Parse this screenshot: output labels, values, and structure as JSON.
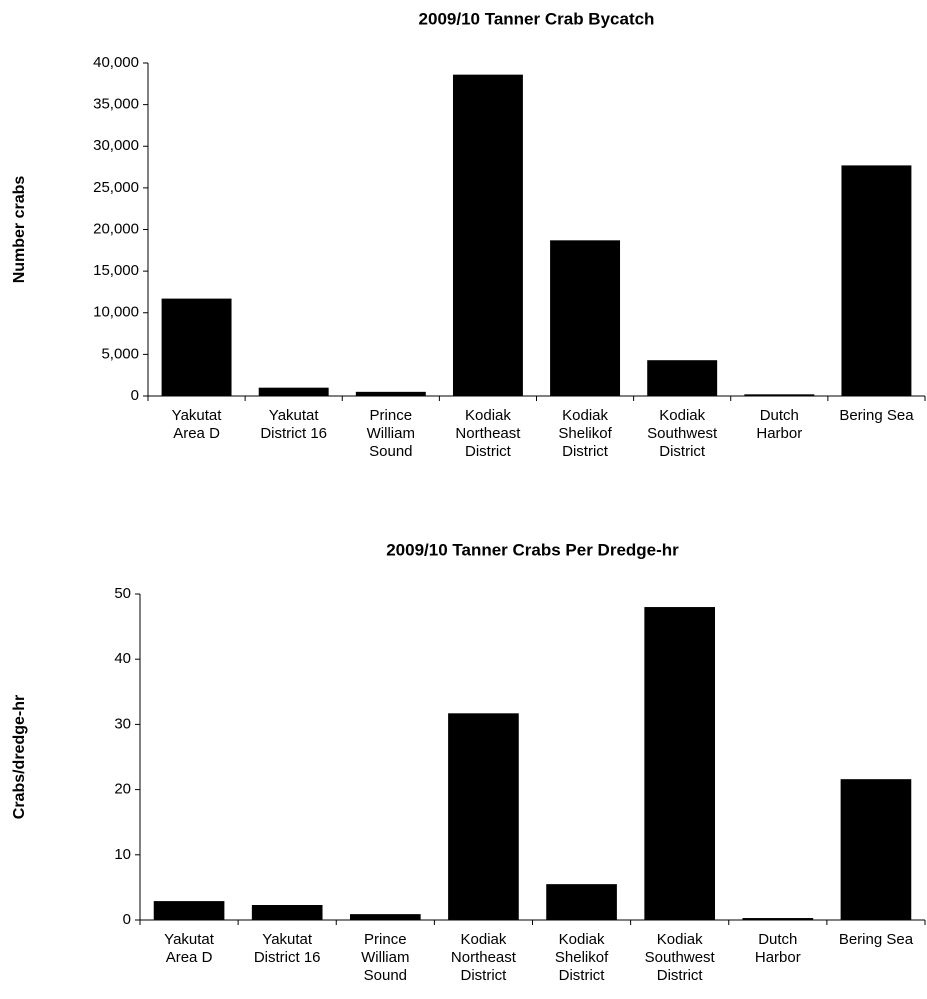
{
  "chart_data": [
    {
      "type": "bar",
      "title": "2009/10 Tanner Crab Bycatch",
      "y_label": "Number crabs",
      "categories": [
        [
          "Yakutat",
          "Area D"
        ],
        [
          "Yakutat",
          "District 16"
        ],
        [
          "Prince",
          "William",
          "Sound"
        ],
        [
          "Kodiak",
          "Northeast",
          "District"
        ],
        [
          "Kodiak",
          "Shelikof",
          "District"
        ],
        [
          "Kodiak",
          "Southwest",
          "District"
        ],
        [
          "Dutch",
          "Harbor"
        ],
        [
          "Bering Sea"
        ]
      ],
      "values": [
        11700,
        1000,
        500,
        38600,
        18700,
        4300,
        200,
        27700
      ],
      "color": "#000000",
      "ylim": [
        0,
        40000
      ],
      "yticks": [
        0,
        {
          "value": 5000,
          "label": "5,000"
        },
        {
          "value": 10000,
          "label": "10,000"
        },
        {
          "value": 15000,
          "label": "15,000"
        },
        {
          "value": 20000,
          "label": "20,000"
        },
        {
          "value": 25000,
          "label": "25,000"
        },
        {
          "value": 30000,
          "label": "30,000"
        },
        {
          "value": 35000,
          "label": "35,000"
        },
        {
          "value": 40000,
          "label": "40,000"
        }
      ],
      "grid": false
    },
    {
      "type": "bar",
      "title": "2009/10 Tanner Crabs Per Dredge-hr",
      "y_label": "Crabs/dredge-hr",
      "categories": [
        [
          "Yakutat",
          "Area D"
        ],
        [
          "Yakutat",
          "District 16"
        ],
        [
          "Prince",
          "William",
          "Sound"
        ],
        [
          "Kodiak",
          "Northeast",
          "District"
        ],
        [
          "Kodiak",
          "Shelikof",
          "District"
        ],
        [
          "Kodiak",
          "Southwest",
          "District"
        ],
        [
          "Dutch",
          "Harbor"
        ],
        [
          "Bering Sea"
        ]
      ],
      "values": [
        2.9,
        2.3,
        0.9,
        31.7,
        5.5,
        48.0,
        0.3,
        21.6
      ],
      "color": "#000000",
      "ylim": [
        0,
        50
      ],
      "yticks": [
        0,
        10,
        20,
        30,
        40,
        50
      ],
      "grid": false
    }
  ]
}
